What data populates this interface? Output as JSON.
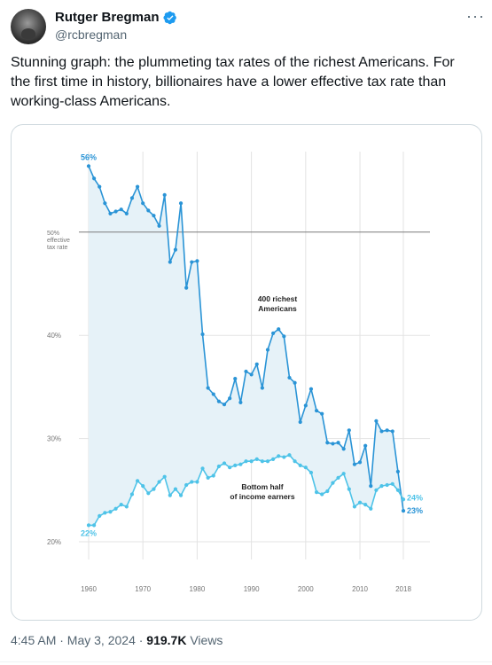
{
  "tweet": {
    "author_name": "Rutger Bregman",
    "handle": "@rcbregman",
    "text": "Stunning graph: the plummeting tax rates of the richest Americans. For the first time in history, billionaires have a lower effective tax rate than working-class Americans.",
    "timestamp": "4:45 AM · May 3, 2024 · ",
    "views_count": "919.7K",
    "views_label": " Views",
    "more_glyph": "···"
  },
  "colors": {
    "verified": "#1d9bf0",
    "rich_line": "#2a94d6",
    "bottom_line": "#4ec3e8",
    "fill": "#e6f2f8",
    "grid": "#e3e3e3",
    "line_50": "#7a7a7a"
  },
  "chart_data": {
    "type": "line",
    "x_ticks": [
      "1960",
      "1970",
      "1980",
      "1990",
      "2000",
      "2010",
      "2018"
    ],
    "y_ticks": [
      "20%",
      "30%",
      "40%",
      "50%"
    ],
    "y_tick_values": [
      20,
      30,
      40,
      50
    ],
    "ylim": [
      20,
      57
    ],
    "xlim": [
      1960,
      2018
    ],
    "reference_line": {
      "value": 50,
      "label_lines": [
        "50%",
        "effective",
        "tax rate"
      ]
    },
    "series": [
      {
        "name": "400 richest Americans",
        "label_lines": [
          "400 richest",
          "Americans"
        ],
        "start_label": "56%",
        "end_label": "23%",
        "x": [
          1960,
          1961,
          1962,
          1963,
          1964,
          1965,
          1966,
          1967,
          1968,
          1969,
          1970,
          1971,
          1972,
          1973,
          1974,
          1975,
          1976,
          1977,
          1978,
          1979,
          1980,
          1981,
          1982,
          1983,
          1984,
          1985,
          1986,
          1987,
          1988,
          1989,
          1990,
          1991,
          1992,
          1993,
          1994,
          1995,
          1996,
          1997,
          1998,
          1999,
          2000,
          2001,
          2002,
          2003,
          2004,
          2005,
          2006,
          2007,
          2008,
          2009,
          2010,
          2011,
          2012,
          2013,
          2014,
          2015,
          2016,
          2017,
          2018
        ],
        "values": [
          56.4,
          55.2,
          54.4,
          52.8,
          51.8,
          52.0,
          52.2,
          51.8,
          53.3,
          54.4,
          52.8,
          52.1,
          51.6,
          50.6,
          53.6,
          47.1,
          48.3,
          52.8,
          44.6,
          47.1,
          47.2,
          40.1,
          34.9,
          34.3,
          33.6,
          33.3,
          33.9,
          35.8,
          33.5,
          36.5,
          36.2,
          37.2,
          34.9,
          38.6,
          40.2,
          40.6,
          39.9,
          35.9,
          35.4,
          31.6,
          33.2,
          34.8,
          32.7,
          32.4,
          29.6,
          29.5,
          29.6,
          29.0,
          30.8,
          27.5,
          27.7,
          29.3,
          25.4,
          31.7,
          30.7,
          30.8,
          30.7,
          26.8,
          23.0
        ]
      },
      {
        "name": "Bottom half of income earners",
        "label_lines": [
          "Bottom half",
          "of income earners"
        ],
        "start_label": "22%",
        "end_label": "24%",
        "x": [
          1960,
          1961,
          1962,
          1963,
          1964,
          1965,
          1966,
          1967,
          1968,
          1969,
          1970,
          1971,
          1972,
          1973,
          1974,
          1975,
          1976,
          1977,
          1978,
          1979,
          1980,
          1981,
          1982,
          1983,
          1984,
          1985,
          1986,
          1987,
          1988,
          1989,
          1990,
          1991,
          1992,
          1993,
          1994,
          1995,
          1996,
          1997,
          1998,
          1999,
          2000,
          2001,
          2002,
          2003,
          2004,
          2005,
          2006,
          2007,
          2008,
          2009,
          2010,
          2011,
          2012,
          2013,
          2014,
          2015,
          2016,
          2017,
          2018
        ],
        "values": [
          21.6,
          21.6,
          22.5,
          22.8,
          22.9,
          23.2,
          23.6,
          23.4,
          24.6,
          25.9,
          25.4,
          24.7,
          25.1,
          25.8,
          26.3,
          24.5,
          25.1,
          24.5,
          25.5,
          25.8,
          25.8,
          27.1,
          26.2,
          26.4,
          27.3,
          27.6,
          27.2,
          27.4,
          27.5,
          27.8,
          27.8,
          28.0,
          27.8,
          27.8,
          28.0,
          28.3,
          28.2,
          28.4,
          27.8,
          27.4,
          27.2,
          26.7,
          24.8,
          24.6,
          24.9,
          25.7,
          26.2,
          26.6,
          25.1,
          23.4,
          23.8,
          23.6,
          23.2,
          25.0,
          25.4,
          25.5,
          25.6,
          25.0,
          24.1
        ]
      }
    ]
  }
}
